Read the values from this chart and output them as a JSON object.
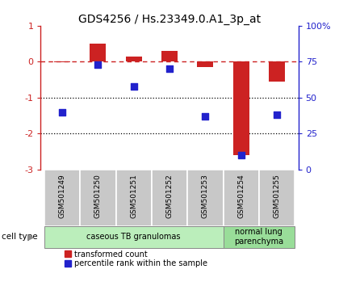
{
  "title": "GDS4256 / Hs.23349.0.A1_3p_at",
  "samples": [
    "GSM501249",
    "GSM501250",
    "GSM501251",
    "GSM501252",
    "GSM501253",
    "GSM501254",
    "GSM501255"
  ],
  "transformed_count": [
    -0.02,
    0.5,
    0.15,
    0.3,
    -0.15,
    -2.6,
    -0.55
  ],
  "percentile_rank": [
    40,
    73,
    58,
    70,
    37,
    10,
    38
  ],
  "ylim_left": [
    -3,
    1
  ],
  "ylim_right": [
    0,
    100
  ],
  "yticks_left": [
    1,
    0,
    -1,
    -2,
    -3
  ],
  "yticks_right": [
    100,
    75,
    50,
    25,
    0
  ],
  "ytick_labels_right": [
    "100%",
    "75",
    "50",
    "25",
    "0"
  ],
  "hlines_dotted": [
    -1,
    -2
  ],
  "bar_color": "#cc2222",
  "dot_color": "#2222cc",
  "cell_types": [
    {
      "label": "caseous TB granulomas",
      "indices": [
        0,
        1,
        2,
        3,
        4
      ],
      "color": "#bbeebb"
    },
    {
      "label": "normal lung\nparenchyma",
      "indices": [
        5,
        6
      ],
      "color": "#99dd99"
    }
  ],
  "group_bg_color": "#c8c8c8",
  "bar_width": 0.45,
  "dot_size": 28
}
